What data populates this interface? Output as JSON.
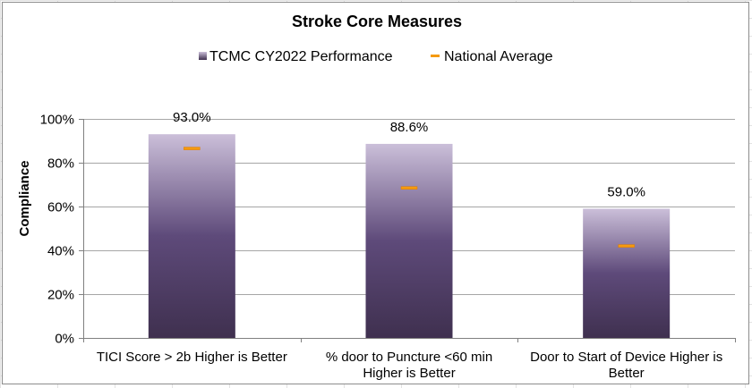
{
  "chart_data": {
    "type": "bar",
    "title": "Stroke Core Measures",
    "ylabel": "Compliance",
    "xlabel": "",
    "ylim": [
      0,
      100
    ],
    "yticks": [
      0,
      20,
      40,
      60,
      80,
      100
    ],
    "ytick_labels": [
      "0%",
      "20%",
      "40%",
      "60%",
      "80%",
      "100%"
    ],
    "grid": true,
    "legend_position": "top",
    "categories": [
      [
        "TICI Score > 2b Higher is Better"
      ],
      [
        "% door to Puncture <60 min",
        "Higher is Better"
      ],
      [
        "Door to Start of Device Higher is",
        "Better"
      ]
    ],
    "series": [
      {
        "name": "TCMC CY2022 Performance",
        "mark": "bar",
        "values": [
          93.0,
          88.6,
          59.0
        ],
        "labels": [
          "93.0%",
          "88.6%",
          "59.0%"
        ],
        "color_top": "#cbbfd9",
        "color_bottom": "#3f304f"
      },
      {
        "name": "National Average",
        "mark": "dash",
        "values": [
          86.5,
          68.5,
          42.0
        ],
        "color": "#f59a0e"
      }
    ]
  }
}
